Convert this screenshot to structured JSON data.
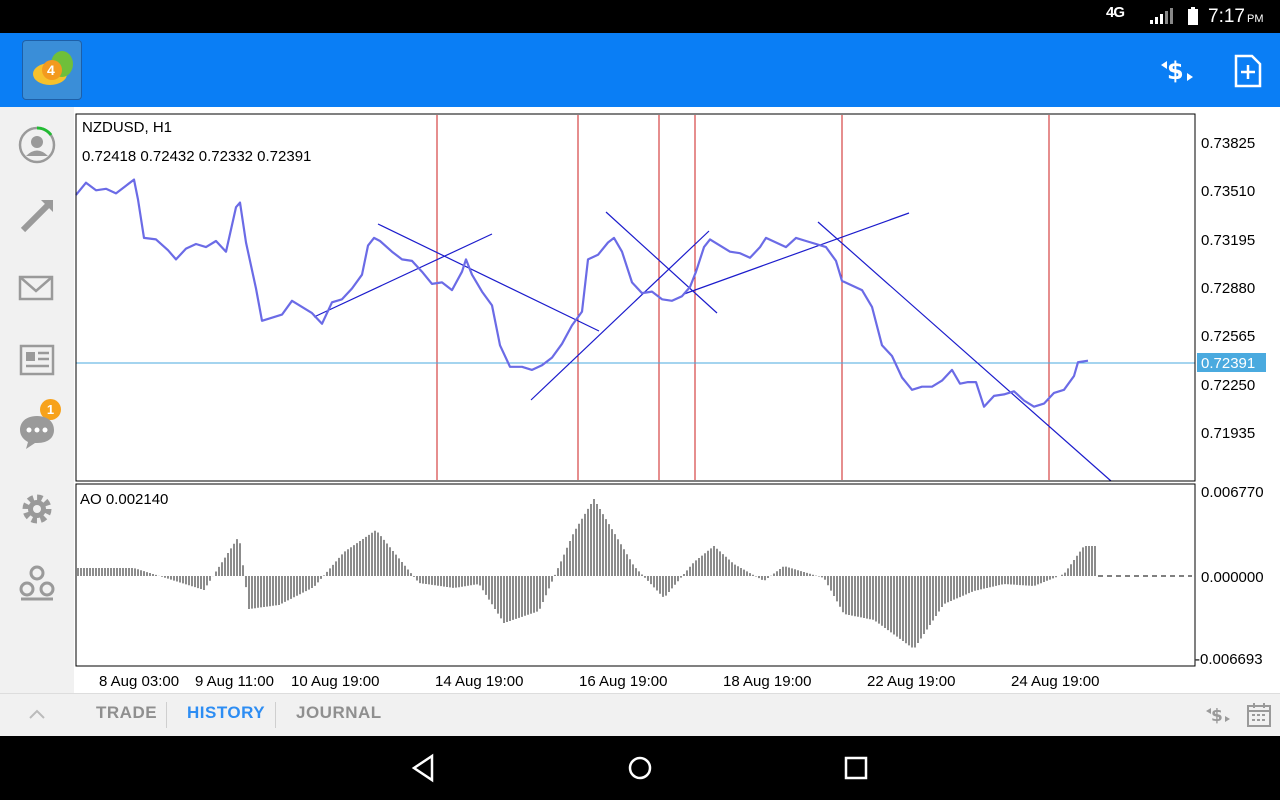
{
  "status_bar": {
    "network": "4G",
    "time": "7:17",
    "ampm": "PM"
  },
  "app_bar": {
    "icons": [
      "metatrader-logo-icon",
      "trade-symbols-icon",
      "new-order-icon"
    ]
  },
  "sidebar": {
    "items": [
      "quotes-icon",
      "trade-icon",
      "mail-icon",
      "news-icon",
      "chat-icon",
      "settings-icon",
      "community-icon"
    ],
    "mail_badge": "1"
  },
  "chart": {
    "symbol": "NZDUSD, H1",
    "ohlc": "0.72418 0.72432 0.72332 0.72391",
    "price_ticks": [
      "0.73825",
      "0.73510",
      "0.73195",
      "0.72880",
      "0.72565",
      "0.72250",
      "0.71935"
    ],
    "current_price": "0.72391",
    "indicator_label": "AO 0.002140",
    "indicator_ticks": [
      "0.006770",
      "0.000000",
      "-0.006693"
    ],
    "time_labels": [
      "8 Aug 03:00",
      "9 Aug 11:00",
      "10 Aug 19:00",
      "14 Aug 19:00",
      "16 Aug 19:00",
      "18 Aug 19:00",
      "22 Aug 19:00",
      "24 Aug 19:00"
    ],
    "colors": {
      "line": "#6b6be6",
      "trendline": "#1c1ccc",
      "vline": "#cc1c1c",
      "hline": "#4aaadf",
      "price_badge": "#4aaadf"
    }
  },
  "chart_data": {
    "type": "line",
    "title": "NZDUSD, H1",
    "ylim": [
      0.717,
      0.7403
    ],
    "price_series": [
      [
        0,
        0.7348
      ],
      [
        10,
        0.7356
      ],
      [
        20,
        0.7351
      ],
      [
        30,
        0.7352
      ],
      [
        40,
        0.7349
      ],
      [
        50,
        0.7354
      ],
      [
        58,
        0.7358
      ],
      [
        62,
        0.7345
      ],
      [
        68,
        0.732
      ],
      [
        80,
        0.7319
      ],
      [
        92,
        0.7312
      ],
      [
        100,
        0.7306
      ],
      [
        110,
        0.7313
      ],
      [
        120,
        0.7316
      ],
      [
        130,
        0.7314
      ],
      [
        140,
        0.7318
      ],
      [
        150,
        0.7311
      ],
      [
        160,
        0.734
      ],
      [
        164,
        0.7343
      ],
      [
        170,
        0.7317
      ],
      [
        180,
        0.7287
      ],
      [
        186,
        0.7266
      ],
      [
        196,
        0.7268
      ],
      [
        206,
        0.727
      ],
      [
        216,
        0.7279
      ],
      [
        226,
        0.7275
      ],
      [
        236,
        0.7271
      ],
      [
        246,
        0.7264
      ],
      [
        256,
        0.7278
      ],
      [
        266,
        0.728
      ],
      [
        276,
        0.7287
      ],
      [
        286,
        0.7296
      ],
      [
        292,
        0.7315
      ],
      [
        298,
        0.732
      ],
      [
        304,
        0.7318
      ],
      [
        316,
        0.7311
      ],
      [
        326,
        0.7306
      ],
      [
        336,
        0.7305
      ],
      [
        346,
        0.7298
      ],
      [
        356,
        0.729
      ],
      [
        366,
        0.7291
      ],
      [
        376,
        0.7286
      ],
      [
        386,
        0.7298
      ],
      [
        390,
        0.7306
      ],
      [
        396,
        0.7296
      ],
      [
        406,
        0.7285
      ],
      [
        416,
        0.7276
      ],
      [
        424,
        0.725
      ],
      [
        434,
        0.7236
      ],
      [
        446,
        0.7236
      ],
      [
        456,
        0.7234
      ],
      [
        466,
        0.7237
      ],
      [
        476,
        0.7242
      ],
      [
        486,
        0.7251
      ],
      [
        496,
        0.7263
      ],
      [
        506,
        0.7272
      ],
      [
        512,
        0.7306
      ],
      [
        522,
        0.7309
      ],
      [
        532,
        0.7317
      ],
      [
        538,
        0.732
      ],
      [
        546,
        0.7311
      ],
      [
        556,
        0.7291
      ],
      [
        566,
        0.7284
      ],
      [
        576,
        0.7285
      ],
      [
        586,
        0.728
      ],
      [
        596,
        0.7279
      ],
      [
        606,
        0.7282
      ],
      [
        614,
        0.7288
      ],
      [
        620,
        0.7298
      ],
      [
        628,
        0.7314
      ],
      [
        634,
        0.7319
      ],
      [
        644,
        0.7315
      ],
      [
        654,
        0.7311
      ],
      [
        664,
        0.731
      ],
      [
        674,
        0.7307
      ],
      [
        684,
        0.7314
      ],
      [
        690,
        0.732
      ],
      [
        700,
        0.7317
      ],
      [
        710,
        0.7314
      ],
      [
        720,
        0.732
      ],
      [
        730,
        0.7318
      ],
      [
        740,
        0.7316
      ],
      [
        750,
        0.7314
      ],
      [
        760,
        0.7305
      ],
      [
        766,
        0.7292
      ],
      [
        776,
        0.7289
      ],
      [
        786,
        0.7286
      ],
      [
        796,
        0.7275
      ],
      [
        806,
        0.725
      ],
      [
        816,
        0.7243
      ],
      [
        826,
        0.7229
      ],
      [
        836,
        0.7221
      ],
      [
        846,
        0.7223
      ],
      [
        856,
        0.7223
      ],
      [
        866,
        0.7227
      ],
      [
        876,
        0.7234
      ],
      [
        884,
        0.7225
      ],
      [
        892,
        0.7226
      ],
      [
        900,
        0.7226
      ],
      [
        908,
        0.721
      ],
      [
        918,
        0.7217
      ],
      [
        928,
        0.7218
      ],
      [
        938,
        0.722
      ],
      [
        948,
        0.7214
      ],
      [
        958,
        0.721
      ],
      [
        968,
        0.7212
      ],
      [
        978,
        0.7219
      ],
      [
        988,
        0.7221
      ],
      [
        998,
        0.723
      ],
      [
        1002,
        0.7239
      ],
      [
        1012,
        0.724
      ]
    ],
    "indicator": {
      "name": "AO",
      "ylim": [
        -0.006693,
        0.00677
      ]
    }
  },
  "bottom_bar": {
    "tabs": [
      "TRADE",
      "HISTORY",
      "JOURNAL"
    ],
    "active_tab": "HISTORY"
  }
}
